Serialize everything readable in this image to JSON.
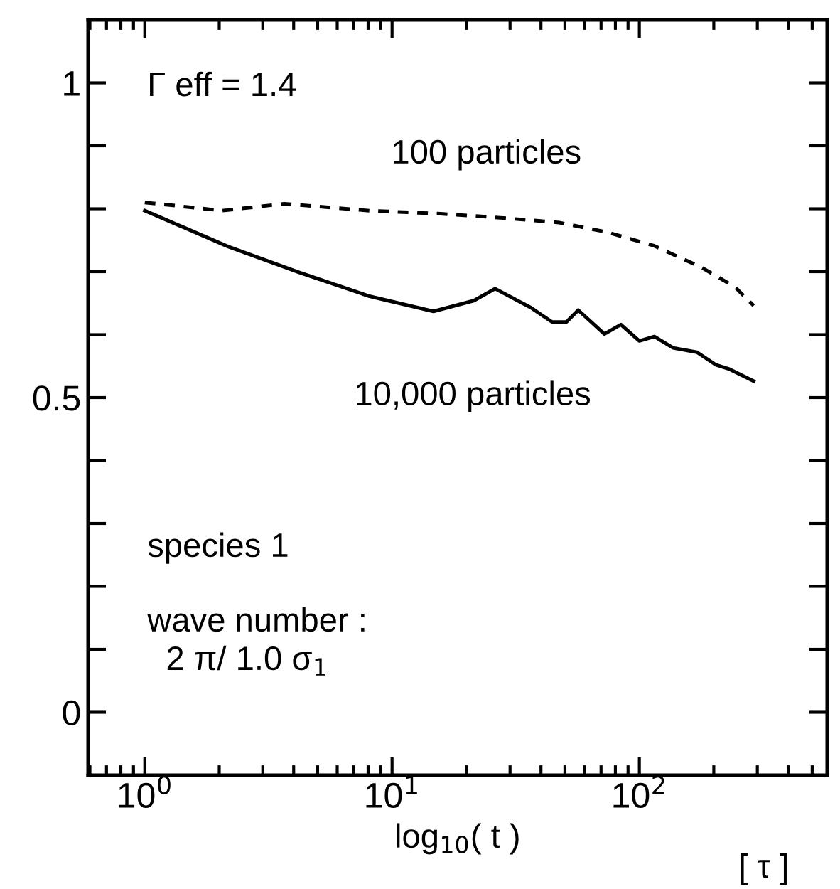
{
  "chart_data": {
    "type": "line",
    "xlabel": "log$_{10}$( t )",
    "log": "x",
    "legend": false,
    "grid": false,
    "marker": "none",
    "xlim": [
      0.59,
      575
    ],
    "ylim": [
      -0.1,
      1.1
    ],
    "xticks": [
      {
        "value": 1,
        "label": "10$^{0}$"
      },
      {
        "value": 10,
        "label": "10$^{1}$"
      },
      {
        "value": 100,
        "label": "10$^{2}$"
      }
    ],
    "yticks": [
      0,
      {
        "value": 0.1,
        "label": null
      },
      {
        "value": 0.2,
        "label": null
      },
      {
        "value": 0.3,
        "label": null
      },
      {
        "value": 0.4,
        "label": null
      },
      0.5,
      {
        "value": 0.6,
        "label": null
      },
      {
        "value": 0.7,
        "label": null
      },
      {
        "value": 0.8,
        "label": null
      },
      {
        "value": 0.9,
        "label": null
      },
      1
    ],
    "series": [
      {
        "name": "100 particles",
        "color": "#000000",
        "line_style": "dashed",
        "x": [
          1,
          2.06,
          3.67,
          8.1,
          15.7,
          26.7,
          47.4,
          73.8,
          115,
          178,
          243,
          290
        ],
        "values": [
          0.81,
          0.797,
          0.808,
          0.797,
          0.792,
          0.786,
          0.778,
          0.763,
          0.741,
          0.707,
          0.676,
          0.646
        ]
      },
      {
        "name": "10,000 particles",
        "color": "#000000",
        "line_style": "solid",
        "x": [
          1,
          2.17,
          4.2,
          8.1,
          14.7,
          21.4,
          26.1,
          36.4,
          44.4,
          50.7,
          56.6,
          72.2,
          84.2,
          100,
          115,
          137,
          171,
          204,
          232,
          290
        ],
        "values": [
          0.797,
          0.74,
          0.699,
          0.661,
          0.637,
          0.654,
          0.673,
          0.643,
          0.62,
          0.62,
          0.639,
          0.601,
          0.616,
          0.59,
          0.597,
          0.579,
          0.572,
          0.552,
          0.545,
          0.526
        ]
      }
    ],
    "annotations": [
      "Γ eff = 1.4",
      "species 1",
      "wave number :\n  2 π/ 1.0 σ$_{1}$",
      "[ τ ]"
    ]
  }
}
